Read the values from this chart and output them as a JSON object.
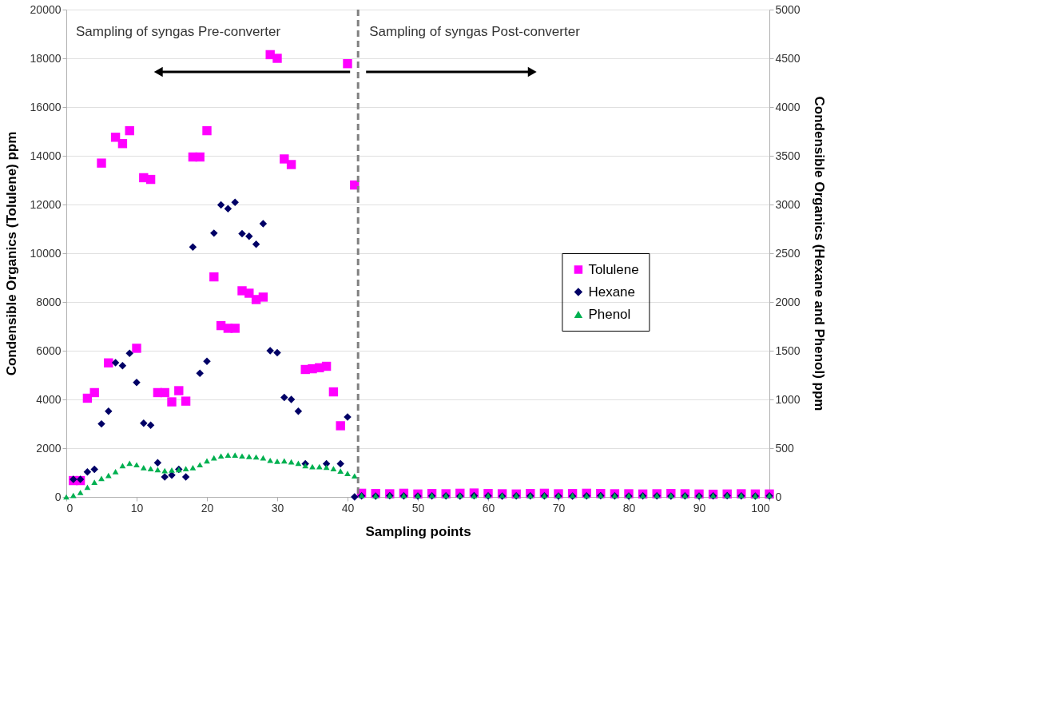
{
  "chart_data": {
    "type": "scatter",
    "xlabel": "Sampling points",
    "ylabel": "Condensible Organics  (Tolulene) ppm",
    "y2label": "Condensible Organics (Hexane and Phenol) ppm",
    "annotations": [
      "Sampling of syngas Pre-converter",
      "Sampling of syngas  Post-converter"
    ],
    "xlim": [
      0,
      100
    ],
    "xticks": [
      0,
      10,
      20,
      30,
      40,
      50,
      60,
      70,
      80,
      90,
      100
    ],
    "ylim": [
      0,
      20000
    ],
    "yticks": [
      0,
      2000,
      4000,
      6000,
      8000,
      10000,
      12000,
      14000,
      16000,
      18000,
      20000
    ],
    "y2lim": [
      0,
      5000
    ],
    "y2ticks": [
      0,
      500,
      1000,
      1500,
      2000,
      2500,
      3000,
      3500,
      4000,
      4500,
      5000
    ],
    "grid": "y",
    "legend": "right",
    "ref_lines": [
      {
        "axis": "x",
        "value": 41.5,
        "color": "#808080",
        "line_style": "dashed"
      }
    ],
    "series": [
      {
        "name": "Tolulene",
        "color": "#ff00ff",
        "marker": "square",
        "x": [
          1,
          2,
          3,
          4,
          5,
          6,
          7,
          8,
          9,
          10,
          11,
          12,
          13,
          14,
          15,
          16,
          17,
          18,
          19,
          20,
          21,
          22,
          23,
          24,
          25,
          26,
          27,
          28,
          29,
          30,
          31,
          32,
          34,
          35,
          36,
          37,
          38,
          39,
          40,
          41,
          42,
          44,
          46,
          48,
          50,
          52,
          54,
          56,
          58,
          60,
          62,
          64,
          66,
          68,
          70,
          72,
          74,
          76,
          78,
          80,
          82,
          84,
          86,
          88,
          90,
          92,
          94,
          96,
          98,
          100
        ],
        "values": [
          670,
          670,
          4050,
          4280,
          13700,
          5500,
          14760,
          14500,
          15030,
          6100,
          13100,
          13030,
          4280,
          4280,
          3900,
          4360,
          3930,
          13950,
          13950,
          15030,
          9030,
          7030,
          6920,
          6920,
          8460,
          8360,
          8100,
          8200,
          18150,
          18000,
          13870,
          13640,
          5230,
          5260,
          5300,
          5360,
          4310,
          2920,
          17780,
          12800,
          150,
          140,
          130,
          150,
          120,
          140,
          130,
          150,
          160,
          140,
          130,
          120,
          140,
          150,
          130,
          140,
          150,
          140,
          130,
          130,
          120,
          130,
          140,
          130,
          120,
          110,
          120,
          130,
          120,
          120
        ]
      },
      {
        "name": "Hexane",
        "color": "#000066",
        "marker": "diamond",
        "axis": "y2",
        "x": [
          1,
          2,
          3,
          4,
          5,
          6,
          7,
          8,
          9,
          10,
          11,
          12,
          13,
          14,
          15,
          16,
          17,
          18,
          19,
          20,
          21,
          22,
          23,
          24,
          25,
          26,
          27,
          28,
          29,
          30,
          31,
          32,
          33,
          34,
          37,
          39,
          40,
          41,
          42,
          44,
          46,
          48,
          50,
          52,
          54,
          56,
          58,
          60,
          62,
          64,
          66,
          68,
          70,
          72,
          74,
          76,
          78,
          80,
          82,
          84,
          86,
          88,
          90,
          92,
          94,
          96,
          98,
          100
        ],
        "values": [
          180,
          180,
          256,
          282,
          749,
          880,
          1377,
          1346,
          1474,
          1174,
          756,
          736,
          351,
          205,
          223,
          282,
          205,
          2564,
          1269,
          1392,
          2706,
          2996,
          2957,
          3022,
          2700,
          2675,
          2592,
          2803,
          1500,
          1480,
          1020,
          1000,
          880,
          341,
          341,
          341,
          820,
          0,
          10,
          8,
          12,
          10,
          9,
          11,
          10,
          8,
          12,
          10,
          9,
          10,
          11,
          10,
          8,
          9,
          10,
          12,
          10,
          9,
          11,
          10,
          8,
          10,
          9,
          10,
          12,
          10,
          9,
          10
        ]
      },
      {
        "name": "Phenol",
        "color": "#00b050",
        "marker": "triangle",
        "axis": "y2",
        "x": [
          0,
          1,
          2,
          3,
          4,
          5,
          6,
          7,
          8,
          9,
          10,
          11,
          12,
          13,
          14,
          15,
          16,
          17,
          18,
          19,
          20,
          21,
          22,
          23,
          24,
          25,
          26,
          27,
          28,
          29,
          30,
          31,
          32,
          33,
          34,
          35,
          36,
          37,
          38,
          39,
          40,
          41,
          42,
          44,
          46,
          48,
          50,
          52,
          54,
          56,
          58,
          60,
          62,
          64,
          66,
          68,
          70,
          72,
          74,
          76,
          78,
          80,
          82,
          84,
          86,
          88,
          90,
          92,
          94,
          96,
          98,
          100
        ],
        "values": [
          0,
          15,
          45,
          100,
          150,
          190,
          220,
          260,
          320,
          346,
          330,
          300,
          290,
          280,
          270,
          275,
          280,
          290,
          300,
          330,
          370,
          400,
          420,
          430,
          430,
          420,
          415,
          410,
          400,
          375,
          365,
          370,
          360,
          345,
          320,
          310,
          310,
          305,
          290,
          265,
          240,
          215,
          15,
          14,
          16,
          15,
          14,
          15,
          16,
          15,
          14,
          15,
          16,
          15,
          14,
          15,
          16,
          15,
          14,
          15,
          16,
          15,
          14,
          15,
          16,
          15,
          14,
          15,
          16,
          15,
          14,
          15
        ]
      }
    ]
  }
}
